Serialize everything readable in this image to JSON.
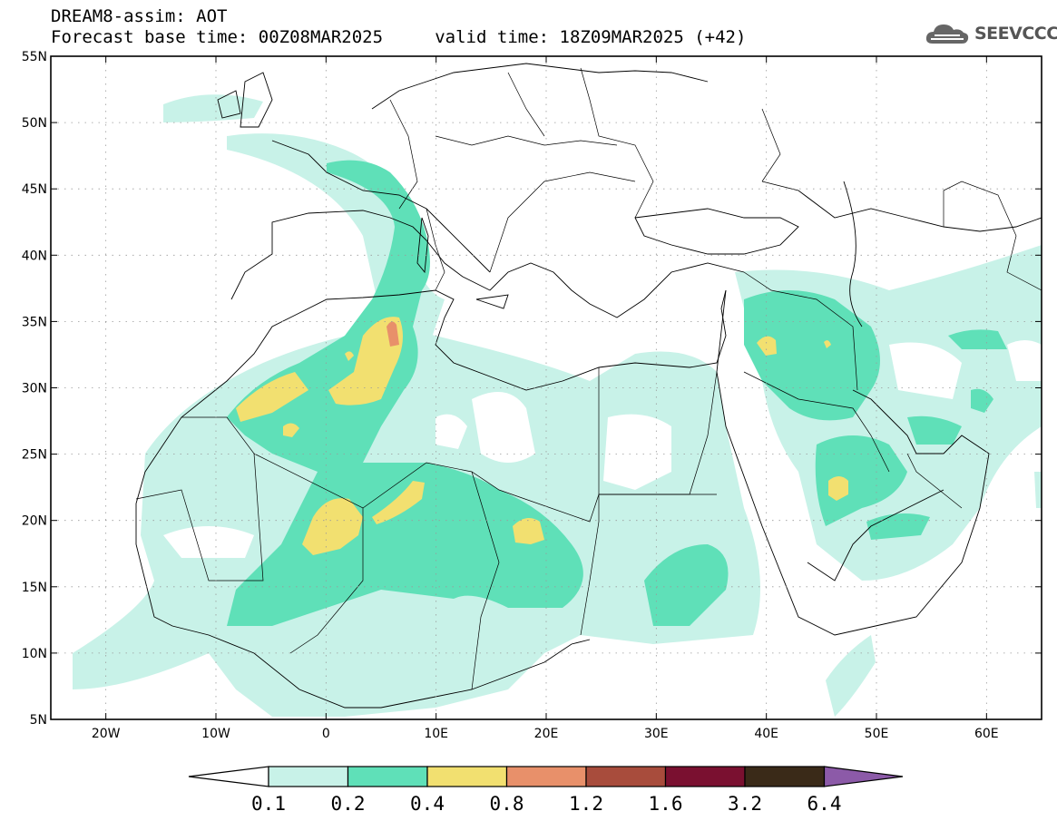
{
  "title": {
    "line1": "DREAM8-assim: AOT",
    "line2": "Forecast base time: 00Z08MAR2025     valid time: 18Z09MAR2025 (+42)"
  },
  "logo": {
    "text": "SEEVCCC",
    "icon": "cloud-icon"
  },
  "map": {
    "lon_range": [
      -25,
      65
    ],
    "lat_range": [
      5,
      55
    ],
    "lat_ticks": [
      "5N",
      "10N",
      "15N",
      "20N",
      "25N",
      "30N",
      "35N",
      "40N",
      "45N",
      "50N",
      "55N"
    ],
    "lon_ticks": [
      "20W",
      "10W",
      "0",
      "10E",
      "20E",
      "30E",
      "40E",
      "50E",
      "60E"
    ],
    "grid": "dotted"
  },
  "colorbar": {
    "labels": [
      "0.1",
      "0.2",
      "0.4",
      "0.8",
      "1.2",
      "1.6",
      "3.2",
      "6.4"
    ],
    "colors": [
      "#ffffff",
      "#c8f2e8",
      "#5fe0b8",
      "#f2e070",
      "#e8906a",
      "#a84c3c",
      "#7a1030",
      "#3a2a18",
      "#8c5aa8"
    ]
  }
}
